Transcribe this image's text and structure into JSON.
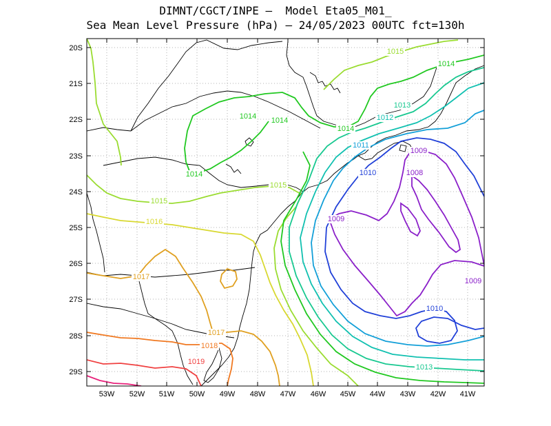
{
  "title_line1": "DIMNT/CGCT/INPE —  Model Eta05_M01_",
  "title_line2": "Sea Mean Level Pressure (hPa) — 24/05/2023 00UTC fct=130h",
  "lon_ticks": [
    "53W",
    "52W",
    "51W",
    "50W",
    "49W",
    "48W",
    "47W",
    "46W",
    "45W",
    "44W",
    "43W",
    "42W",
    "41W"
  ],
  "lat_ticks": [
    "20S",
    "21S",
    "22S",
    "23S",
    "24S",
    "25S",
    "26S",
    "27S",
    "28S",
    "29S"
  ],
  "isobar_colors": {
    "1008": "#8a1fc9",
    "1009": "#8a1fc9",
    "1010": "#2040d8",
    "1011": "#129fd8",
    "1012": "#10c0b0",
    "1013": "#18c890",
    "1014": "#20c820",
    "1015": "#9adc30",
    "1016": "#d8d830",
    "1017": "#e0a020",
    "1018": "#f07820",
    "1019": "#f04040",
    "1020": "#e8207a"
  },
  "contour_labels": [
    {
      "text": "1015",
      "level": "1015"
    },
    {
      "text": "1014",
      "level": "1014"
    },
    {
      "text": "1014",
      "level": "1014"
    },
    {
      "text": "1014",
      "level": "1014"
    },
    {
      "text": "1014",
      "level": "1014"
    },
    {
      "text": "1014",
      "level": "1014"
    },
    {
      "text": "1013",
      "level": "1013"
    },
    {
      "text": "1012",
      "level": "1012"
    },
    {
      "text": "1011",
      "level": "1011"
    },
    {
      "text": "1010",
      "level": "1010"
    },
    {
      "text": "1009",
      "level": "1009"
    },
    {
      "text": "1008",
      "level": "1008"
    },
    {
      "text": "1015",
      "level": "1015"
    },
    {
      "text": "1015",
      "level": "1015"
    },
    {
      "text": "1016",
      "level": "1016"
    },
    {
      "text": "1009",
      "level": "1009"
    },
    {
      "text": "1017",
      "level": "1017"
    },
    {
      "text": "1009",
      "level": "1009"
    },
    {
      "text": "1010",
      "level": "1010"
    },
    {
      "text": "1017",
      "level": "1017"
    },
    {
      "text": "1018",
      "level": "1018"
    },
    {
      "text": "1019",
      "level": "1019"
    },
    {
      "text": "1013",
      "level": "1013"
    }
  ]
}
